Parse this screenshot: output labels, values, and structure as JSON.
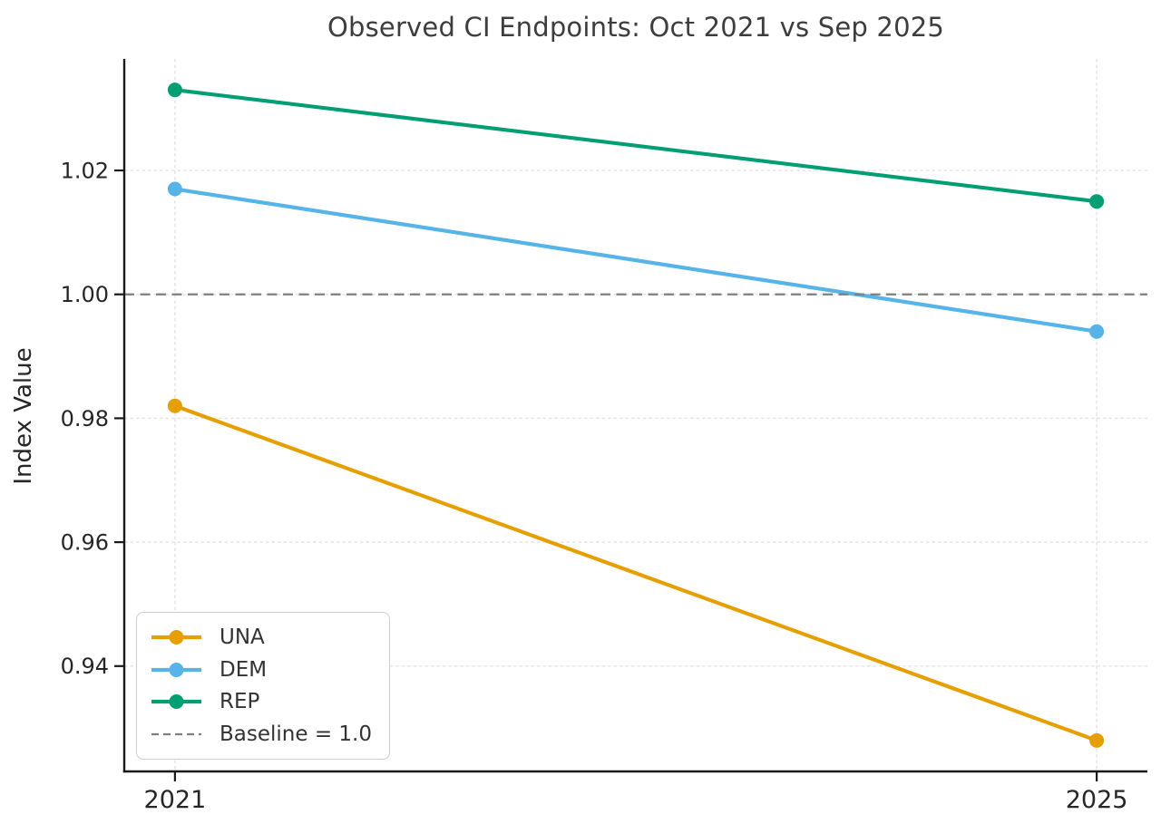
{
  "chart_data": {
    "type": "line",
    "title": "Observed CI Endpoints: Oct 2021 vs Sep 2025",
    "xlabel": "",
    "ylabel": "Index Value",
    "x": [
      2021,
      2025
    ],
    "x_tick_labels": [
      "2021",
      "2025"
    ],
    "y_ticks": [
      0.94,
      0.96,
      0.98,
      1.0,
      1.02
    ],
    "y_tick_labels": [
      "0.94",
      "0.96",
      "0.98",
      "1.00",
      "1.02"
    ],
    "xlim": [
      2020.78,
      2025.22
    ],
    "ylim": [
      0.923,
      1.038
    ],
    "grid": true,
    "series": [
      {
        "name": "UNA",
        "color": "#E69F00",
        "x": [
          2021,
          2025
        ],
        "values": [
          0.982,
          0.928
        ]
      },
      {
        "name": "DEM",
        "color": "#56B4E9",
        "x": [
          2021,
          2025
        ],
        "values": [
          1.017,
          0.994
        ]
      },
      {
        "name": "REP",
        "color": "#009E73",
        "x": [
          2021,
          2025
        ],
        "values": [
          1.033,
          1.015
        ]
      }
    ],
    "baseline": {
      "label": "Baseline = 1.0",
      "value": 1.0,
      "color": "#7F7F7F",
      "style": "dashed"
    },
    "legend_position": "lower-left",
    "legend_entries": [
      "UNA",
      "DEM",
      "REP",
      "Baseline = 1.0"
    ]
  },
  "style_colors": {
    "axis_text": "#262626",
    "title_text": "#3d3d3d",
    "spine": "#1a1a1a",
    "gridline": "#e3e3e3"
  }
}
